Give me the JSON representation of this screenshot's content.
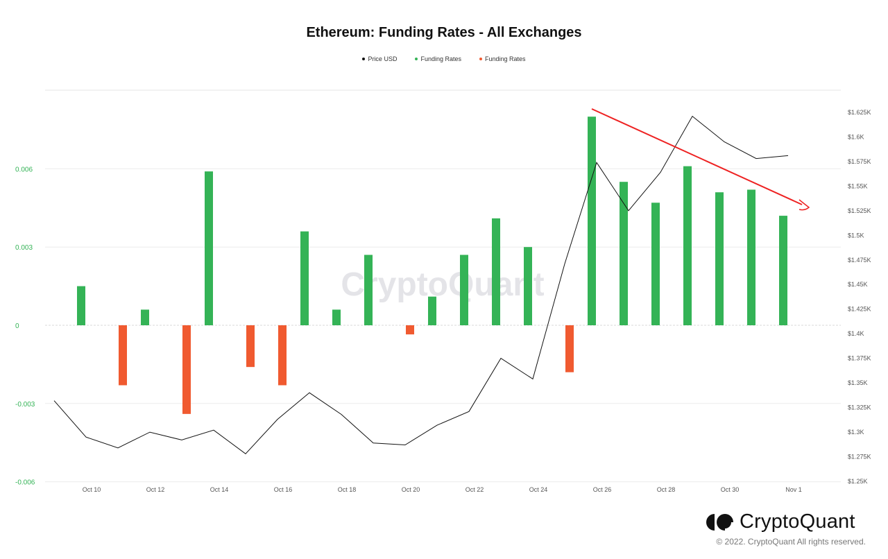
{
  "chart_data": {
    "type": "bar+line",
    "title": "Ethereum: Funding Rates - All Exchanges",
    "legend": [
      {
        "name": "Price USD",
        "color": "#111111"
      },
      {
        "name": "Funding Rates",
        "color": "#34b356"
      },
      {
        "name": "Funding Rates",
        "color": "#f05a30"
      }
    ],
    "legend_position": "top-center",
    "x_tick_labels": [
      "Oct 10",
      "Oct 12",
      "Oct 14",
      "Oct 16",
      "Oct 18",
      "Oct 20",
      "Oct 22",
      "Oct 24",
      "Oct 26",
      "Oct 28",
      "Oct 30",
      "Nov 1"
    ],
    "dates": [
      "Oct 9",
      "Oct 10",
      "Oct 11",
      "Oct 12",
      "Oct 13",
      "Oct 14",
      "Oct 15",
      "Oct 16",
      "Oct 17",
      "Oct 18",
      "Oct 19",
      "Oct 20",
      "Oct 21",
      "Oct 22",
      "Oct 23",
      "Oct 24",
      "Oct 25",
      "Oct 26",
      "Oct 27",
      "Oct 28",
      "Oct 29",
      "Oct 30",
      "Oct 31",
      "Nov 1"
    ],
    "left_axis": {
      "ticks": [
        0.006,
        0.003,
        0,
        -0.003,
        -0.006
      ],
      "tick_labels": [
        "0.006",
        "0.003",
        "0",
        "-0.003",
        "-0.006"
      ],
      "ylim": [
        -0.006,
        0.009
      ],
      "color": "#34b356"
    },
    "right_axis": {
      "ylim": [
        1250,
        1650
      ],
      "tick_labels": [
        "$1.625K",
        "$1.6K",
        "$1.575K",
        "$1.55K",
        "$1.525K",
        "$1.5K",
        "$1.475K",
        "$1.45K",
        "$1.425K",
        "$1.4K",
        "$1.375K",
        "$1.35K",
        "$1.325K",
        "$1.3K",
        "$1.275K",
        "$1.25K"
      ]
    },
    "funding_rates": [
      null,
      0.0015,
      -0.0023,
      0.0006,
      -0.0034,
      0.0059,
      -0.0016,
      -0.0023,
      0.0036,
      0.0006,
      0.0027,
      -0.00035,
      0.0011,
      0.0027,
      0.0041,
      0.003,
      -0.0018,
      0.008,
      0.0055,
      0.0047,
      0.0061,
      0.0051,
      0.0052,
      0.0042
    ],
    "price_usd": [
      1332,
      1295,
      1284,
      1300,
      1292,
      1302,
      1278,
      1313,
      1340,
      1318,
      1289,
      1287,
      1307,
      1321,
      1375,
      1354,
      1471,
      1574,
      1525,
      1564,
      1621,
      1595,
      1578,
      1581
    ],
    "grid": true,
    "watermark": "CryptoQuant"
  },
  "footer": {
    "brand": "CryptoQuant",
    "copyright": "© 2022. CryptoQuant All rights reserved."
  }
}
